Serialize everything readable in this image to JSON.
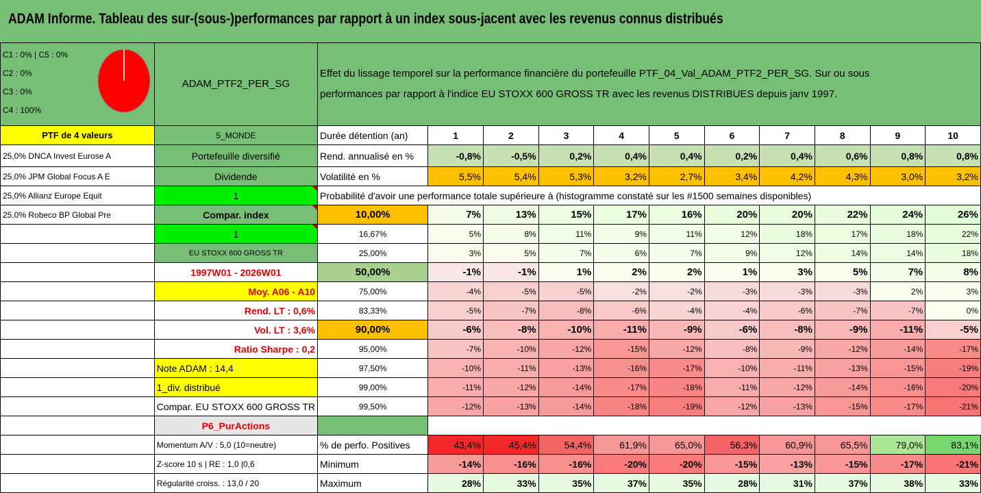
{
  "title": "ADAM Informe. Tableau des sur-(sous-)performances par rapport à un index sous-jacent avec les revenus connus distribués",
  "pie": {
    "lines": [
      "C1 : 0% | C5 : 0%",
      "C2 : 0%",
      "C3 : 0%",
      "C4 : 100%"
    ],
    "color": "#ff0000"
  },
  "portfolio_name": "ADAM_PTF2_PER_SG",
  "description_line1": "Effet du lissage temporel sur la performance financière du portefeuille PTF_04_Val_ADAM_PTF2_PER_SG. Sur ou sous",
  "description_line2": "performances par rapport à l'indice EU STOXX 600 GROSS TR avec les revenus DISTRIBUES depuis janv 1997.",
  "left_col": [
    "PTF de 4 valeurs",
    "25,0% DNCA Invest Eurose A",
    "25,0% JPM Global Focus A E",
    "25,0% Allianz Europe Equit",
    "25,0% Robeco BP Global Pre"
  ],
  "mid_col": {
    "monde": "5_MONDE",
    "diversifie": "Portefeuille diversifié",
    "dividende": "Dividende",
    "one_a": "1",
    "compar_index": "Compar. index",
    "one_b": "1",
    "index_name": "EU STOXX 600 GROSS TR",
    "period": "1997W01 - 2026W01",
    "moy": "Moy. A06 - A10",
    "rend_lt": "Rend. LT : 0,6%",
    "vol_lt": "Vol. LT : 3,6%",
    "sharpe": "Ratio Sharpe : 0,2",
    "note": "Note ADAM : 14,4",
    "div": "1_div. distribué",
    "compar": "Compar. EU STOXX 600 GROSS TR",
    "p6": "P6_PurActions",
    "momentum": "Momentum A/V : 5,0 (10=neutre)",
    "zscore": "Z-score 10 s | RE : 1,0 |0,6",
    "regularite": "Régularité croiss. : 13,0 / 20"
  },
  "rows": {
    "duree": {
      "label": "Durée détention (an)",
      "values": [
        "1",
        "2",
        "3",
        "4",
        "5",
        "6",
        "7",
        "8",
        "9",
        "10"
      ]
    },
    "rend": {
      "label": "Rend. annualisé en %",
      "values": [
        "-0,8%",
        "-0,5%",
        "0,2%",
        "0,4%",
        "0,4%",
        "0,2%",
        "0,4%",
        "0,6%",
        "0,8%",
        "0,8%"
      ]
    },
    "vol": {
      "label": "Volatilité en %",
      "values": [
        "5,5%",
        "5,4%",
        "5,3%",
        "3,2%",
        "2,7%",
        "3,4%",
        "4,2%",
        "4,3%",
        "3,0%",
        "3,2%"
      ]
    },
    "proba_title": "Probabilité d'avoir une performance totale supérieure à (histogramme constaté sur les #1500 semaines disponibles)",
    "percentiles": [
      {
        "p": "10,00%",
        "values": [
          "7%",
          "13%",
          "15%",
          "17%",
          "16%",
          "20%",
          "20%",
          "22%",
          "24%",
          "26%"
        ]
      },
      {
        "p": "16,67%",
        "values": [
          "5%",
          "8%",
          "11%",
          "9%",
          "11%",
          "12%",
          "18%",
          "17%",
          "18%",
          "22%"
        ]
      },
      {
        "p": "25,00%",
        "values": [
          "3%",
          "5%",
          "7%",
          "6%",
          "7%",
          "9%",
          "12%",
          "14%",
          "14%",
          "18%"
        ]
      },
      {
        "p": "50,00%",
        "values": [
          "-1%",
          "-1%",
          "1%",
          "2%",
          "2%",
          "1%",
          "3%",
          "5%",
          "7%",
          "8%"
        ]
      },
      {
        "p": "75,00%",
        "values": [
          "-4%",
          "-5%",
          "-5%",
          "-2%",
          "-2%",
          "-3%",
          "-3%",
          "-3%",
          "2%",
          "3%"
        ]
      },
      {
        "p": "83,33%",
        "values": [
          "-5%",
          "-7%",
          "-8%",
          "-6%",
          "-4%",
          "-4%",
          "-6%",
          "-7%",
          "-7%",
          "0%"
        ]
      },
      {
        "p": "90,00%",
        "values": [
          "-6%",
          "-8%",
          "-10%",
          "-11%",
          "-9%",
          "-6%",
          "-8%",
          "-9%",
          "-11%",
          "-5%"
        ]
      },
      {
        "p": "95,00%",
        "values": [
          "-7%",
          "-10%",
          "-12%",
          "-15%",
          "-12%",
          "-8%",
          "-9%",
          "-12%",
          "-14%",
          "-17%"
        ]
      },
      {
        "p": "97,50%",
        "values": [
          "-10%",
          "-11%",
          "-13%",
          "-16%",
          "-17%",
          "-10%",
          "-11%",
          "-13%",
          "-15%",
          "-19%"
        ]
      },
      {
        "p": "99,00%",
        "values": [
          "-11%",
          "-12%",
          "-14%",
          "-17%",
          "-18%",
          "-11%",
          "-12%",
          "-14%",
          "-16%",
          "-20%"
        ]
      },
      {
        "p": "99,50%",
        "values": [
          "-12%",
          "-13%",
          "-14%",
          "-18%",
          "-19%",
          "-12%",
          "-13%",
          "-15%",
          "-17%",
          "-21%"
        ]
      }
    ],
    "positives": {
      "label": "% de perfo. Positives",
      "values": [
        "43,4%",
        "45,4%",
        "54,4%",
        "61,9%",
        "65,0%",
        "56,3%",
        "60,9%",
        "65,5%",
        "79,0%",
        "83,1%"
      ]
    },
    "minimum": {
      "label": "Minimum",
      "values": [
        "-14%",
        "-16%",
        "-16%",
        "-20%",
        "-20%",
        "-15%",
        "-13%",
        "-15%",
        "-17%",
        "-21%"
      ]
    },
    "maximum": {
      "label": "Maximum",
      "values": [
        "28%",
        "33%",
        "35%",
        "37%",
        "35%",
        "28%",
        "31%",
        "37%",
        "38%",
        "33%"
      ]
    }
  }
}
